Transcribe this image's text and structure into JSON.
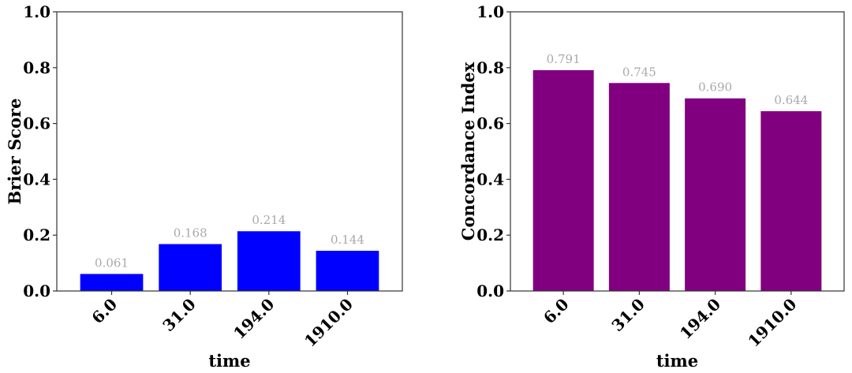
{
  "chart_data": [
    {
      "type": "bar",
      "title": "",
      "categories": [
        "6.0",
        "31.0",
        "194.0",
        "1910.0"
      ],
      "values": [
        0.061,
        0.168,
        0.214,
        0.144
      ],
      "data_labels": [
        "0.061",
        "0.168",
        "0.214",
        "0.144"
      ],
      "xlabel": "time",
      "ylabel": "Brier Score",
      "ylim": [
        0,
        1.0
      ],
      "yticks": [
        "0.0",
        "0.2",
        "0.4",
        "0.6",
        "0.8",
        "1.0"
      ],
      "color": "#0000ff",
      "grid": false
    },
    {
      "type": "bar",
      "title": "",
      "categories": [
        "6.0",
        "31.0",
        "194.0",
        "1910.0"
      ],
      "values": [
        0.791,
        0.745,
        0.69,
        0.644
      ],
      "data_labels": [
        "0.791",
        "0.745",
        "0.690",
        "0.644"
      ],
      "xlabel": "time",
      "ylabel": "Concordance Index",
      "ylim": [
        0,
        1.0
      ],
      "yticks": [
        "0.0",
        "0.2",
        "0.4",
        "0.6",
        "0.8",
        "1.0"
      ],
      "color": "#800080",
      "grid": false
    }
  ]
}
